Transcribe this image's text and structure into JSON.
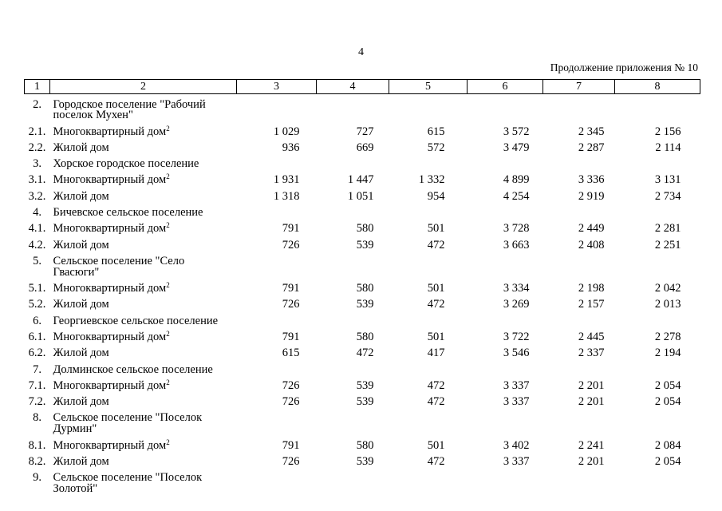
{
  "page": {
    "number": "4",
    "continuation": "Продолжение приложения № 10"
  },
  "table": {
    "header_cols": [
      "1",
      "2",
      "3",
      "4",
      "5",
      "6",
      "7",
      "8"
    ],
    "rows": [
      {
        "type": "section",
        "num": "2.",
        "name": "Городское поселение \"Рабочий\nпоселок Мухен\""
      },
      {
        "type": "data",
        "num": "2.1.",
        "name": "Многоквартирный дом",
        "sup": "2",
        "values": [
          "1 029",
          "727",
          "615",
          "3 572",
          "2 345",
          "2 156"
        ]
      },
      {
        "type": "data",
        "num": "2.2.",
        "name": "Жилой дом",
        "values": [
          "936",
          "669",
          "572",
          "3 479",
          "2 287",
          "2 114"
        ]
      },
      {
        "type": "section",
        "num": "3.",
        "name": "Хорское городское поселение"
      },
      {
        "type": "data",
        "num": "3.1.",
        "name": "Многоквартирный дом",
        "sup": "2",
        "values": [
          "1 931",
          "1 447",
          "1 332",
          "4 899",
          "3 336",
          "3 131"
        ]
      },
      {
        "type": "data",
        "num": "3.2.",
        "name": "Жилой дом",
        "values": [
          "1 318",
          "1 051",
          "954",
          "4 254",
          "2 919",
          "2 734"
        ]
      },
      {
        "type": "section",
        "num": "4.",
        "name": "Бичевское сельское поселение"
      },
      {
        "type": "data",
        "num": "4.1.",
        "name": "Многоквартирный дом",
        "sup": "2",
        "values": [
          "791",
          "580",
          "501",
          "3 728",
          "2 449",
          "2 281"
        ]
      },
      {
        "type": "data",
        "num": "4.2.",
        "name": "Жилой дом",
        "values": [
          "726",
          "539",
          "472",
          "3 663",
          "2 408",
          "2 251"
        ]
      },
      {
        "type": "section",
        "num": "5.",
        "name": "Сельское поселение \"Село\nГвасюги\""
      },
      {
        "type": "data",
        "num": "5.1.",
        "name": "Многоквартирный дом",
        "sup": "2",
        "values": [
          "791",
          "580",
          "501",
          "3 334",
          "2 198",
          "2 042"
        ]
      },
      {
        "type": "data",
        "num": "5.2.",
        "name": "Жилой дом",
        "values": [
          "726",
          "539",
          "472",
          "3 269",
          "2 157",
          "2 013"
        ]
      },
      {
        "type": "section",
        "num": "6.",
        "name": "Георгиевское сельское поселение"
      },
      {
        "type": "data",
        "num": "6.1.",
        "name": "Многоквартирный дом",
        "sup": "2",
        "values": [
          "791",
          "580",
          "501",
          "3 722",
          "2 445",
          "2 278"
        ]
      },
      {
        "type": "data",
        "num": "6.2.",
        "name": "Жилой дом",
        "values": [
          "615",
          "472",
          "417",
          "3 546",
          "2 337",
          "2 194"
        ]
      },
      {
        "type": "section",
        "num": "7.",
        "name": "Долминское сельское поселение"
      },
      {
        "type": "data",
        "num": "7.1.",
        "name": "Многоквартирный дом",
        "sup": "2",
        "values": [
          "726",
          "539",
          "472",
          "3 337",
          "2 201",
          "2 054"
        ]
      },
      {
        "type": "data",
        "num": "7.2.",
        "name": "Жилой дом",
        "values": [
          "726",
          "539",
          "472",
          "3 337",
          "2 201",
          "2 054"
        ]
      },
      {
        "type": "section",
        "num": "8.",
        "name": "Сельское поселение \"Поселок\nДурмин\""
      },
      {
        "type": "data",
        "num": "8.1.",
        "name": "Многоквартирный дом",
        "sup": "2",
        "values": [
          "791",
          "580",
          "501",
          "3 402",
          "2 241",
          "2 084"
        ]
      },
      {
        "type": "data",
        "num": "8.2.",
        "name": "Жилой дом",
        "values": [
          "726",
          "539",
          "472",
          "3 337",
          "2 201",
          "2 054"
        ]
      },
      {
        "type": "section",
        "num": "9.",
        "name": "Сельское поселение \"Поселок\nЗолотой\""
      }
    ]
  }
}
